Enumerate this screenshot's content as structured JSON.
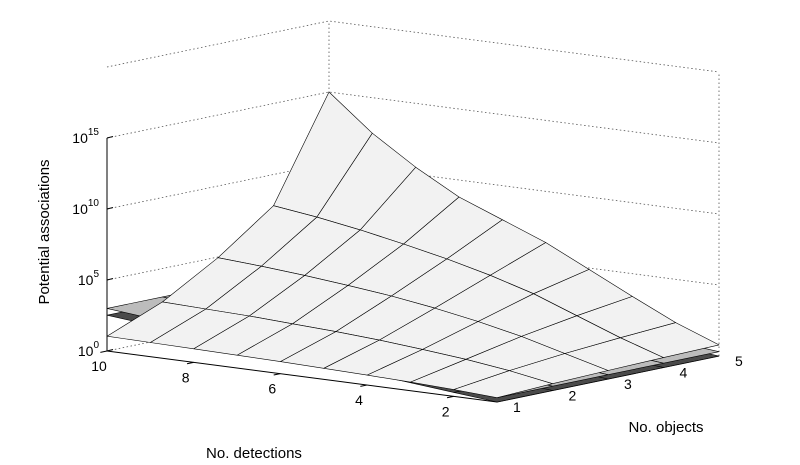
{
  "chart_data": {
    "type": "surface3d",
    "title": "",
    "xlabel": "No. detections",
    "ylabel": "No. objects",
    "zlabel": "Potential associations",
    "z_scale": "log",
    "grid": true,
    "x_ticks": [
      "2",
      "4",
      "6",
      "8",
      "10"
    ],
    "y_ticks": [
      "1",
      "2",
      "3",
      "4",
      "5"
    ],
    "z_ticks": [
      {
        "base": "10",
        "exp": "0"
      },
      {
        "base": "10",
        "exp": "5"
      },
      {
        "base": "10",
        "exp": "10"
      },
      {
        "base": "10",
        "exp": "15"
      }
    ],
    "x_range": [
      1,
      10
    ],
    "y_range": [
      1,
      5
    ],
    "z_range_log10": [
      0,
      20
    ],
    "surfaces": [
      {
        "shading": "light",
        "color": "#f2f2f2",
        "detections": [
          1,
          2,
          3,
          4,
          5,
          6,
          7,
          8,
          9,
          10
        ],
        "objects": [
          1,
          2,
          3,
          4,
          5
        ],
        "log10_z": [
          [
            0.3,
            0.48,
            0.6,
            0.7,
            0.78
          ],
          [
            0.48,
            1.0,
            1.4,
            1.7,
            1.95
          ],
          [
            0.6,
            1.4,
            2.2,
            2.85,
            3.4
          ],
          [
            0.7,
            1.7,
            2.85,
            4.0,
            4.9
          ],
          [
            0.78,
            1.95,
            3.4,
            4.9,
            6.4
          ],
          [
            0.85,
            2.15,
            3.85,
            5.65,
            7.6
          ],
          [
            0.9,
            2.3,
            4.2,
            6.3,
            8.8
          ],
          [
            0.95,
            2.45,
            4.5,
            6.9,
            10.5
          ],
          [
            1.0,
            2.55,
            4.75,
            7.4,
            12.5
          ],
          [
            1.04,
            2.65,
            4.95,
            7.8,
            15.0
          ]
        ]
      },
      {
        "shading": "gray",
        "color": "#bcbcbc",
        "detections": [
          1,
          2,
          3,
          4,
          5,
          6,
          7,
          8,
          9,
          10
        ],
        "objects": [
          1,
          2,
          3,
          4,
          5
        ],
        "log10_z": [
          [
            0.3,
            0.3,
            0.3,
            0.3,
            0.3
          ],
          [
            0.6,
            0.6,
            0.6,
            0.6,
            0.6
          ],
          [
            0.9,
            0.9,
            0.9,
            0.9,
            0.9
          ],
          [
            1.2,
            1.2,
            1.2,
            1.2,
            1.2
          ],
          [
            1.5,
            1.5,
            1.5,
            1.5,
            1.5
          ],
          [
            1.8,
            1.8,
            1.8,
            1.8,
            1.8
          ],
          [
            2.1,
            2.1,
            2.1,
            2.1,
            2.1
          ],
          [
            2.4,
            2.4,
            2.4,
            2.4,
            2.4
          ],
          [
            2.7,
            2.7,
            2.7,
            2.7,
            2.7
          ],
          [
            3.0,
            3.0,
            3.0,
            3.0,
            3.0
          ]
        ]
      },
      {
        "shading": "dark",
        "color": "#4a4a4a",
        "detections": [
          1,
          2,
          3,
          4,
          5,
          6,
          7,
          8,
          9,
          10
        ],
        "objects": [
          1,
          2,
          3,
          4,
          5
        ],
        "log10_z": [
          [
            0.0,
            0.0,
            0.0,
            0.0,
            0.0
          ],
          [
            0.28,
            0.28,
            0.28,
            0.28,
            0.28
          ],
          [
            0.56,
            0.56,
            0.56,
            0.56,
            0.56
          ],
          [
            0.84,
            0.84,
            0.84,
            0.84,
            0.84
          ],
          [
            1.12,
            1.12,
            1.12,
            1.12,
            1.12
          ],
          [
            1.4,
            1.4,
            1.4,
            1.4,
            1.4
          ],
          [
            1.68,
            1.68,
            1.68,
            1.68,
            1.68
          ],
          [
            1.96,
            1.96,
            1.96,
            1.96,
            1.96
          ],
          [
            2.24,
            2.24,
            2.24,
            2.24,
            2.24
          ],
          [
            2.52,
            2.52,
            2.52,
            2.52,
            2.52
          ]
        ]
      }
    ]
  }
}
